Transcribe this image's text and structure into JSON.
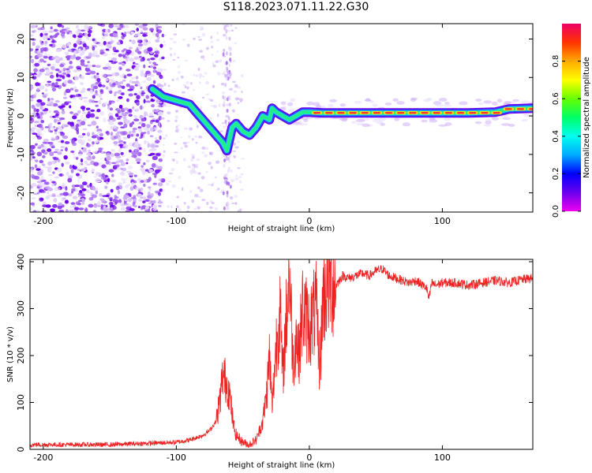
{
  "title": "S118.2023.071.11.22.G30",
  "colors": {
    "snr_line": "#ee2222",
    "spectrogram_ridge": [
      "#ff3333",
      "#ffdd00",
      "#22ee88",
      "#22ddee",
      "#2255ff",
      "#6a00ee"
    ],
    "speckle": [
      "#e6d8fb",
      "#c9a8f6",
      "#9a55ee",
      "#6a00ee"
    ]
  },
  "chart_data": [
    {
      "type": "heatmap",
      "title": "",
      "xlabel": "Height of straight line (km)",
      "ylabel": "Frequency (Hz)",
      "xlim": [
        -210,
        168
      ],
      "ylim": [
        -25,
        24
      ],
      "x_ticks": [
        -200,
        -100,
        0,
        100
      ],
      "y_ticks": [
        -20,
        -10,
        0,
        10,
        20
      ],
      "colorbar": {
        "label": "Normalized spectral amplitude",
        "range": [
          0.0,
          1.0
        ],
        "ticks": [
          "0.0",
          "0.2",
          "0.4",
          "0.6",
          "0.8"
        ],
        "colormap": [
          "#ee00ee",
          "#6a00ee",
          "#0000ff",
          "#00aaff",
          "#00ffee",
          "#00ff66",
          "#66ff00",
          "#ffff00",
          "#ffaa00",
          "#ff3300",
          "#ee0066"
        ]
      },
      "ridge": {
        "x": [
          -118,
          -110,
          -100,
          -90,
          -85,
          -80,
          -75,
          -70,
          -65,
          -62,
          -58,
          -55,
          -50,
          -45,
          -40,
          -35,
          -30,
          -28,
          -25,
          -20,
          -15,
          -10,
          -5,
          0,
          10,
          30,
          50,
          80,
          100,
          120,
          140,
          150,
          168
        ],
        "freq_hz": [
          7,
          5,
          4,
          3,
          1,
          -1,
          -3,
          -5,
          -7,
          -9,
          -3,
          -2,
          -4,
          -5,
          -3,
          0,
          -1,
          2,
          1,
          0,
          -1,
          0,
          1,
          1,
          0.8,
          0.8,
          0.8,
          0.8,
          0.8,
          0.8,
          1,
          1.8,
          2
        ]
      },
      "strong_segment_x": [
        0,
        168
      ]
    },
    {
      "type": "line",
      "title": "",
      "xlabel": "Height of straight line (km)",
      "ylabel": "SNR (10 * v/v)",
      "xlim": [
        -210,
        168
      ],
      "ylim": [
        0,
        405
      ],
      "x_ticks": [
        -200,
        -100,
        0,
        100
      ],
      "y_ticks": [
        0,
        100,
        200,
        300,
        400
      ],
      "series": [
        {
          "x": [
            -210,
            -190,
            -170,
            -150,
            -130,
            -110,
            -100,
            -90,
            -85,
            -80,
            -75,
            -70,
            -67,
            -65,
            -62,
            -60,
            -57,
            -55,
            -50,
            -45,
            -40,
            -35,
            -32,
            -30,
            -28,
            -25,
            -22,
            -20,
            -18,
            -15,
            -12,
            -10,
            -8,
            -5,
            0,
            5,
            8,
            10,
            12,
            15,
            20,
            25,
            30,
            35,
            40,
            45,
            50,
            55,
            60,
            65,
            70,
            75,
            80,
            85,
            88,
            90,
            92,
            95,
            100,
            110,
            120,
            130,
            140,
            150,
            160,
            168
          ],
          "y": [
            10,
            10,
            10,
            10,
            12,
            14,
            15,
            20,
            25,
            30,
            40,
            60,
            110,
            160,
            140,
            120,
            50,
            30,
            15,
            10,
            20,
            60,
            120,
            200,
            90,
            220,
            300,
            150,
            250,
            380,
            180,
            250,
            200,
            300,
            260,
            300,
            170,
            320,
            340,
            360,
            350,
            370,
            365,
            370,
            375,
            370,
            380,
            385,
            370,
            365,
            360,
            355,
            360,
            350,
            345,
            320,
            355,
            350,
            355,
            355,
            350,
            355,
            360,
            355,
            362,
            365
          ]
        }
      ]
    }
  ]
}
